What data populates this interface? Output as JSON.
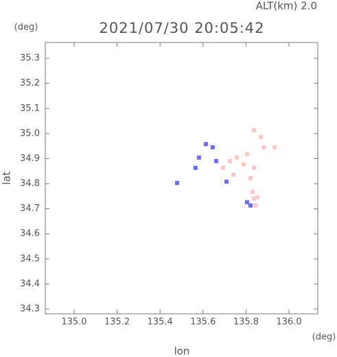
{
  "chart_data": {
    "type": "scatter",
    "title": "2021/07/30 20:05:42",
    "annotation": "ALT(km) 2.0",
    "y_unit": "(deg)",
    "x_unit": "(deg)",
    "xlabel": "lon",
    "ylabel": "lat",
    "xlim": [
      134.866,
      136.134
    ],
    "ylim": [
      34.281,
      35.363
    ],
    "xticks": [
      {
        "value": 135,
        "label": "135.0"
      },
      135.2,
      135.4,
      135.6,
      135.8,
      {
        "value": 136,
        "label": "136.0"
      }
    ],
    "yticks": [
      35.3,
      35.2,
      35.1,
      {
        "value": 35,
        "label": "35.0"
      },
      34.9,
      34.8,
      34.7,
      34.6,
      34.5,
      34.4,
      34.3
    ],
    "series": [
      {
        "color": "#ffc8c8",
        "x": [
          135.837,
          135.869,
          135.885,
          135.805,
          135.757,
          135.789,
          135.837,
          135.725,
          135.693,
          135.741,
          135.821,
          135.831,
          135.837,
          135.843,
          135.933,
          135.853
        ],
        "y": [
          35.013,
          34.986,
          34.945,
          34.918,
          34.904,
          34.877,
          34.863,
          34.89,
          34.863,
          34.836,
          34.822,
          34.767,
          34.74,
          34.713,
          34.945,
          34.745
        ]
      },
      {
        "color": "#6a6aff",
        "x": [
          135.613,
          135.581,
          135.565,
          135.645,
          135.661,
          135.709,
          135.805,
          135.821,
          135.479
        ],
        "y": [
          34.958,
          34.904,
          34.863,
          34.945,
          34.89,
          34.808,
          34.726,
          34.713,
          34.803
        ]
      }
    ]
  }
}
